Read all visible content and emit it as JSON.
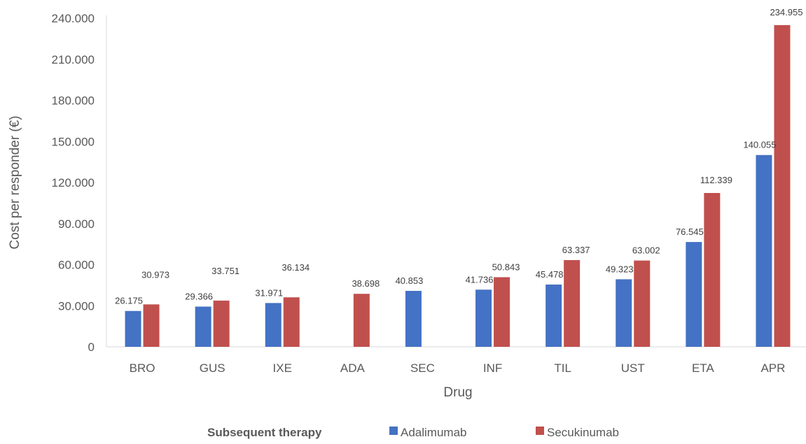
{
  "chart_data": {
    "type": "bar",
    "title": "",
    "xlabel": "Drug",
    "ylabel": "Cost per responder (€)",
    "ylim": [
      0,
      240000
    ],
    "yticks": [
      0,
      30000,
      60000,
      90000,
      120000,
      150000,
      180000,
      210000,
      240000
    ],
    "ytick_labels": [
      "0",
      "30.000",
      "60.000",
      "90.000",
      "120.000",
      "150.000",
      "180.000",
      "210.000",
      "240.000"
    ],
    "categories": [
      "BRO",
      "GUS",
      "IXE",
      "ADA",
      "SEC",
      "INF",
      "TIL",
      "UST",
      "ETA",
      "APR"
    ],
    "legend_title": "Subsequent therapy",
    "legend_position": "bottom",
    "grid": false,
    "series": [
      {
        "name": "Adalimumab",
        "color": "#4472C4",
        "values": [
          26175,
          29366,
          31971,
          null,
          40853,
          41736,
          45478,
          49323,
          76545,
          140055
        ],
        "labels": [
          "26.175",
          "29.366",
          "31.971",
          "",
          "40.853",
          "41.736",
          "45.478",
          "49.323",
          "76.545",
          "140.055"
        ]
      },
      {
        "name": "Secukinumab",
        "color": "#C0504D",
        "values": [
          30973,
          33751,
          36134,
          38698,
          null,
          50843,
          63337,
          63002,
          112339,
          234955
        ],
        "labels": [
          "30.973",
          "33.751",
          "36.134",
          "38.698",
          "",
          "50.843",
          "63.337",
          "63.002",
          "112.339",
          "234.955"
        ]
      }
    ]
  }
}
